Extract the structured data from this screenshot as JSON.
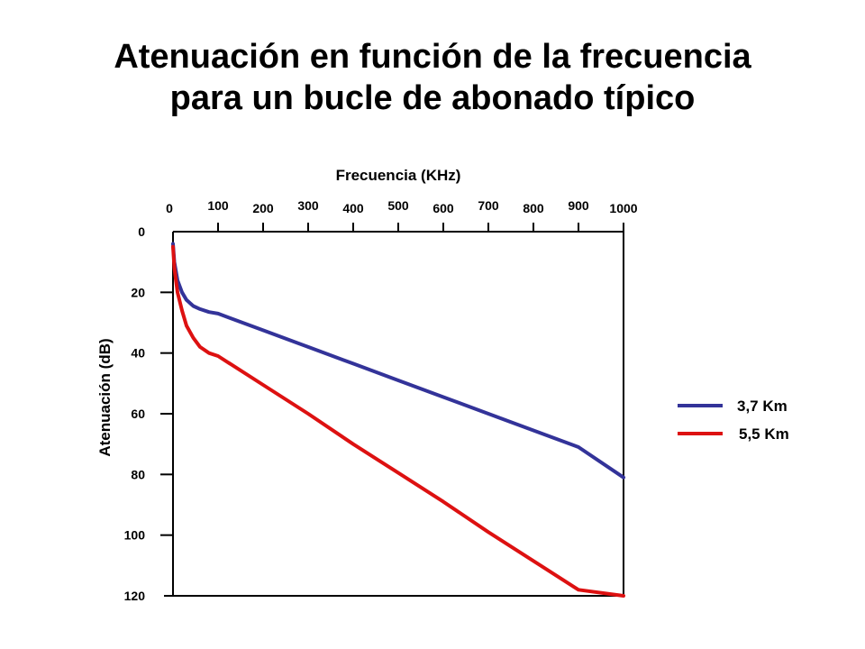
{
  "title_lines": [
    "Atenuación en función de la frecuencia",
    "para un bucle de abonado típico"
  ],
  "chart_data": {
    "type": "line",
    "xlabel": "Frecuencia (KHz)",
    "ylabel": "Atenuación (dB)",
    "xlim": [
      0,
      1000
    ],
    "ylim": [
      0,
      120
    ],
    "x_ticks": [
      0,
      100,
      200,
      300,
      400,
      500,
      600,
      700,
      800,
      900,
      1000
    ],
    "y_ticks": [
      0,
      20,
      40,
      60,
      80,
      100,
      120
    ],
    "y_inverted": true,
    "grid": false,
    "legend_position": "right",
    "series": [
      {
        "name": "3,7 Km",
        "color": "#333399",
        "x": [
          0,
          3,
          10,
          20,
          30,
          45,
          60,
          80,
          100,
          200,
          300,
          400,
          500,
          600,
          700,
          800,
          900,
          1000
        ],
        "y": [
          4,
          10,
          16,
          20,
          22.5,
          24.5,
          25.5,
          26.5,
          27,
          32.5,
          38,
          43.5,
          49,
          54.5,
          60,
          65.5,
          71,
          81
        ]
      },
      {
        "name": "5,5 Km",
        "color": "#dd1111",
        "x": [
          0,
          3,
          10,
          20,
          30,
          45,
          60,
          80,
          100,
          200,
          300,
          400,
          500,
          600,
          700,
          800,
          900,
          1000
        ],
        "y": [
          5,
          12,
          20,
          26,
          31,
          35,
          38,
          40,
          41,
          50.5,
          60,
          70,
          79.5,
          89,
          99,
          108.5,
          118,
          120
        ]
      }
    ]
  }
}
